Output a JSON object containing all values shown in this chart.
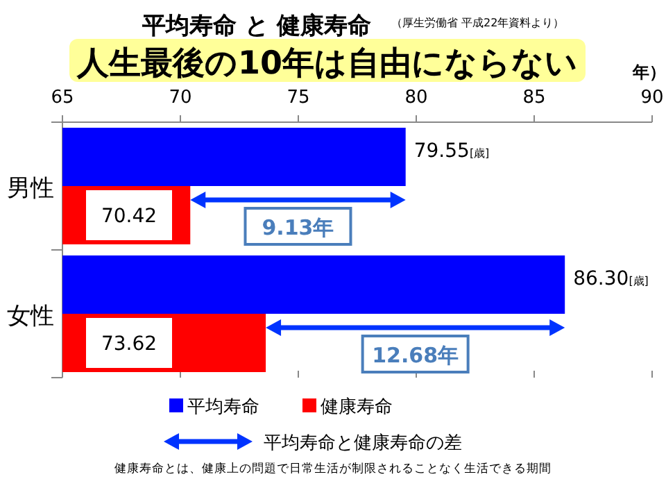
{
  "chart_data": {
    "type": "bar",
    "orientation": "horizontal",
    "title": "平均寿命 と 健康寿命",
    "subtitle": "人生最後の10年は自由にならない",
    "xlabel": "年）",
    "categories": [
      "男性",
      "女性"
    ],
    "series": [
      {
        "name": "平均寿命",
        "color": "#0000ff",
        "values": [
          79.55,
          86.3
        ],
        "value_labels": [
          "79.55[歳]",
          "86.30[歳]"
        ]
      },
      {
        "name": "健康寿命",
        "color": "#ff0000",
        "values": [
          70.42,
          73.62
        ],
        "value_labels": [
          "70.42",
          "73.62"
        ]
      }
    ],
    "xlim": [
      65,
      90
    ],
    "xticks": [
      65,
      70,
      75,
      80,
      85,
      90
    ],
    "grid": false,
    "legend": "bottom",
    "annotations": [
      "（厚生労働省 平成22年資料より）",
      {
        "text": "9.13年",
        "y": "男性"
      },
      {
        "text": "12.68年",
        "y": "女性"
      },
      "平均寿命と健康寿命の差",
      "健康寿命とは、健康上の問題で日常生活が制限されることなく生活できる期間"
    ]
  }
}
